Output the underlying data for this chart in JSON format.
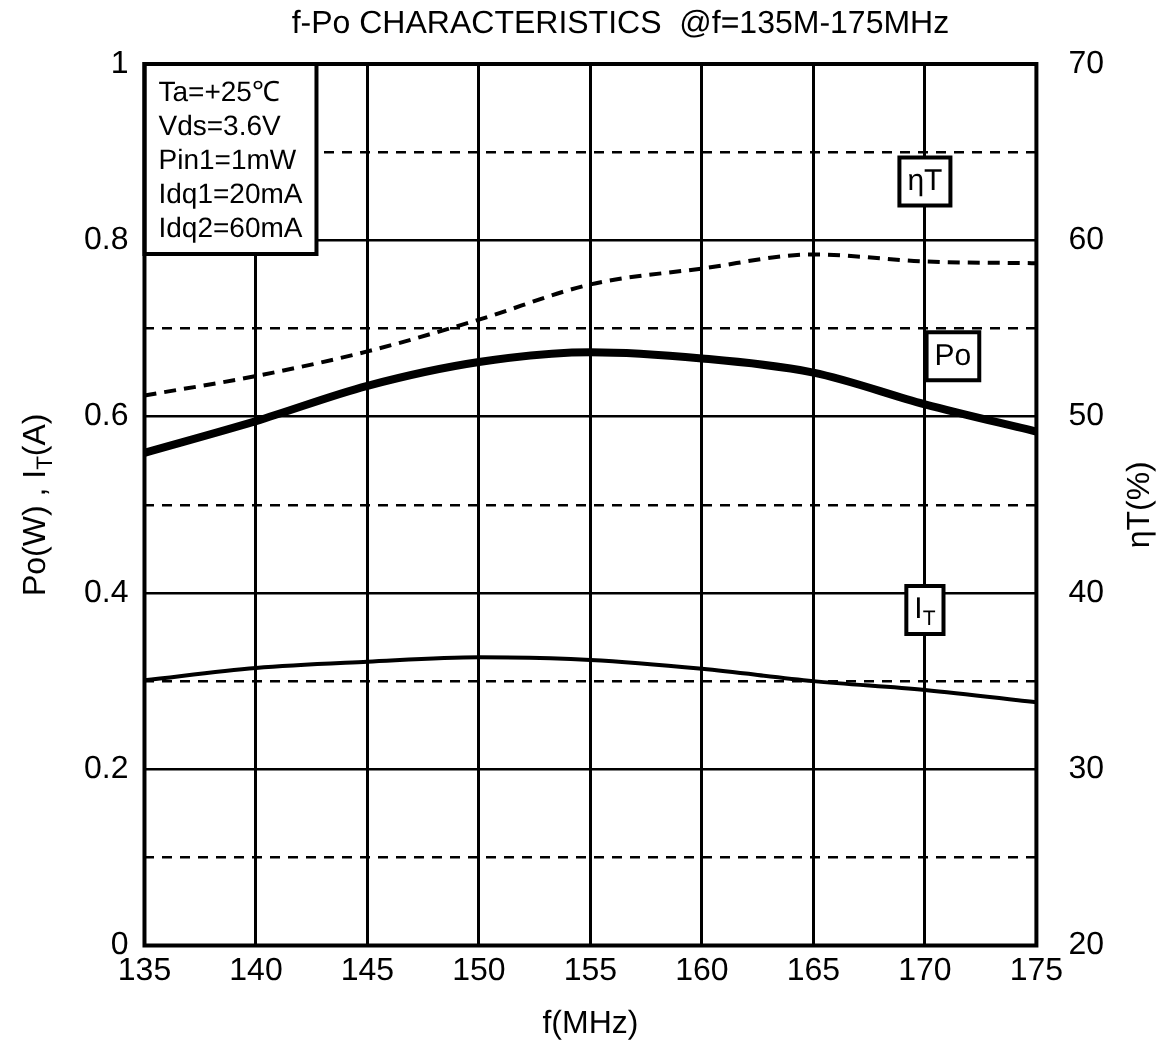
{
  "chart_data": {
    "type": "line",
    "title": "f-Po CHARACTERISTICS  @f=135M-175MHz",
    "xlabel": "f(MHz)",
    "ylabel": "Po(W) , I$_{T}$(A)",
    "y2label": "ηT(%)",
    "x": [
      135,
      140,
      145,
      150,
      155,
      160,
      165,
      170,
      175
    ],
    "xlim": [
      135,
      175
    ],
    "xticks": [
      135,
      140,
      145,
      150,
      155,
      160,
      165,
      170,
      175
    ],
    "ylim": [
      0,
      1
    ],
    "yticks": [
      0,
      {
        "value": 0.1,
        "label": null
      },
      0.2,
      {
        "value": 0.3,
        "label": null
      },
      0.4,
      {
        "value": 0.5,
        "label": null
      },
      0.6,
      {
        "value": 0.7,
        "label": null
      },
      0.8,
      {
        "value": 0.9,
        "label": null
      },
      1
    ],
    "y2lim": [
      20,
      70
    ],
    "y2ticks": [
      20,
      30,
      40,
      50,
      60,
      70
    ],
    "grid": true,
    "legend": false,
    "marker": "none",
    "series": [
      {
        "name": "ηT",
        "color": "#000000",
        "axis": "y2",
        "line_style": "dashed",
        "values": [
          51.2,
          52.3,
          53.7,
          55.5,
          57.5,
          58.4,
          59.2,
          58.8,
          58.7
        ]
      },
      {
        "name": "Po",
        "color": "#000000",
        "line_style": "solid",
        "values": [
          0.559,
          0.595,
          0.635,
          0.662,
          0.673,
          0.666,
          0.65,
          0.614,
          0.583
        ]
      },
      {
        "name": "I$_{T}$",
        "color": "#000000",
        "line_style": "solid",
        "values": [
          0.301,
          0.315,
          0.322,
          0.327,
          0.324,
          0.314,
          0.3,
          0.29,
          0.276
        ]
      }
    ],
    "annotations": [
      "Ta=+25℃",
      "Vds=3.6V",
      "Pin1=1mW",
      "Idq1=20mA",
      "Idq2=60mA"
    ]
  }
}
